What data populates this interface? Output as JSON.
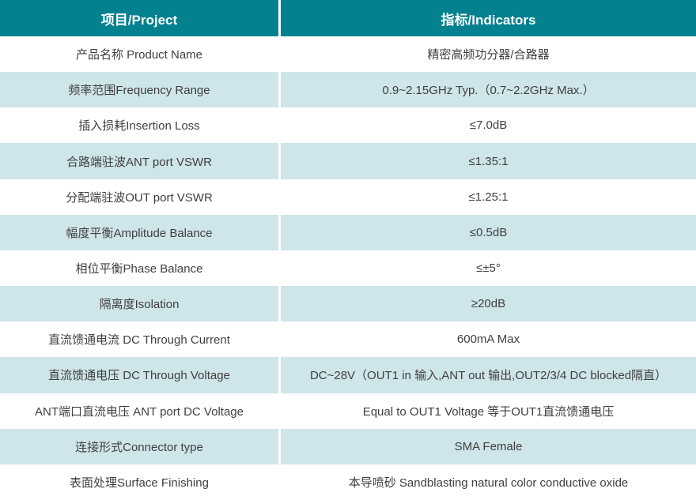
{
  "table": {
    "colors": {
      "header_bg": "#04818F",
      "header_text": "#FFFFFF",
      "alt_row_bg": "#CEE5E9",
      "row_bg": "#FFFFFF",
      "body_text": "#3F3F3F",
      "divider": "#FFFFFF"
    },
    "header": {
      "project": "项目/Project",
      "indicators": "指标/Indicators"
    },
    "rows": [
      {
        "project": "产品名称 Product Name",
        "indicator": "精密高频功分器/合路器"
      },
      {
        "project": "频率范围Frequency Range",
        "indicator": "0.9~2.15GHz Typ.（0.7~2.2GHz Max.）"
      },
      {
        "project": "插入损耗Insertion Loss",
        "indicator": "≤7.0dB"
      },
      {
        "project": "合路端驻波ANT port VSWR",
        "indicator": "≤1.35:1"
      },
      {
        "project": "分配端驻波OUT port VSWR",
        "indicator": "≤1.25:1"
      },
      {
        "project": "幅度平衡Amplitude Balance",
        "indicator": "≤0.5dB"
      },
      {
        "project": "相位平衡Phase Balance",
        "indicator": "≤±5°"
      },
      {
        "project": "隔离度Isolation",
        "indicator": "≥20dB"
      },
      {
        "project": "直流馈通电流 DC Through Current",
        "indicator": "600mA Max"
      },
      {
        "project": "直流馈通电压 DC Through Voltage",
        "indicator": "DC~28V（OUT1 in 输入,ANT out 输出,OUT2/3/4 DC blocked隔直）"
      },
      {
        "project": "ANT端口直流电压 ANT port DC Voltage",
        "indicator": "Equal to OUT1 Voltage 等于OUT1直流馈通电压"
      },
      {
        "project": "连接形式Connector type",
        "indicator": "SMA Female"
      },
      {
        "project": "表面处理Surface Finishing",
        "indicator": "本导喷砂 Sandblasting natural color conductive oxide"
      }
    ]
  }
}
